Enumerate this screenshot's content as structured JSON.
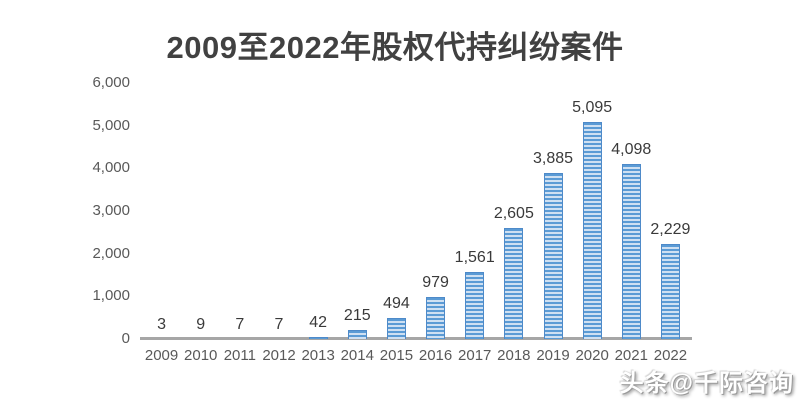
{
  "page": {
    "background": "#ffffff"
  },
  "watermark": {
    "text": "头条@千际咨询"
  },
  "colors": {
    "title_text": "#414141",
    "axis_text": "#595959",
    "value_text": "#3a3a3a",
    "baseline": "#a6a6a6",
    "bar_stripe_dark": "#5b9bd5",
    "bar_stripe_light": "#cfe0f2",
    "bar_border": "#4e8ac9"
  },
  "chart_data": {
    "type": "bar",
    "title": "2009至2022年股权代持纠纷案件",
    "categories": [
      "2009",
      "2010",
      "2011",
      "2012",
      "2013",
      "2014",
      "2015",
      "2016",
      "2017",
      "2018",
      "2019",
      "2020",
      "2021",
      "2022"
    ],
    "values": [
      3,
      9,
      7,
      7,
      42,
      215,
      494,
      979,
      1561,
      2605,
      3885,
      5095,
      4098,
      2229
    ],
    "value_labels": [
      "3",
      "9",
      "7",
      "7",
      "42",
      "215",
      "494",
      "979",
      "1,561",
      "2,605",
      "3,885",
      "5,095",
      "4,098",
      "2,229"
    ],
    "xlabel": "",
    "ylabel": "",
    "ylim": [
      0,
      6000
    ],
    "ytick_values": [
      0,
      1000,
      2000,
      3000,
      4000,
      5000,
      6000
    ],
    "ytick_labels": [
      "0",
      "1,000",
      "2,000",
      "3,000",
      "4,000",
      "5,000",
      "6,000"
    ],
    "grid": false,
    "legend": false,
    "data_labels_shown": true
  }
}
